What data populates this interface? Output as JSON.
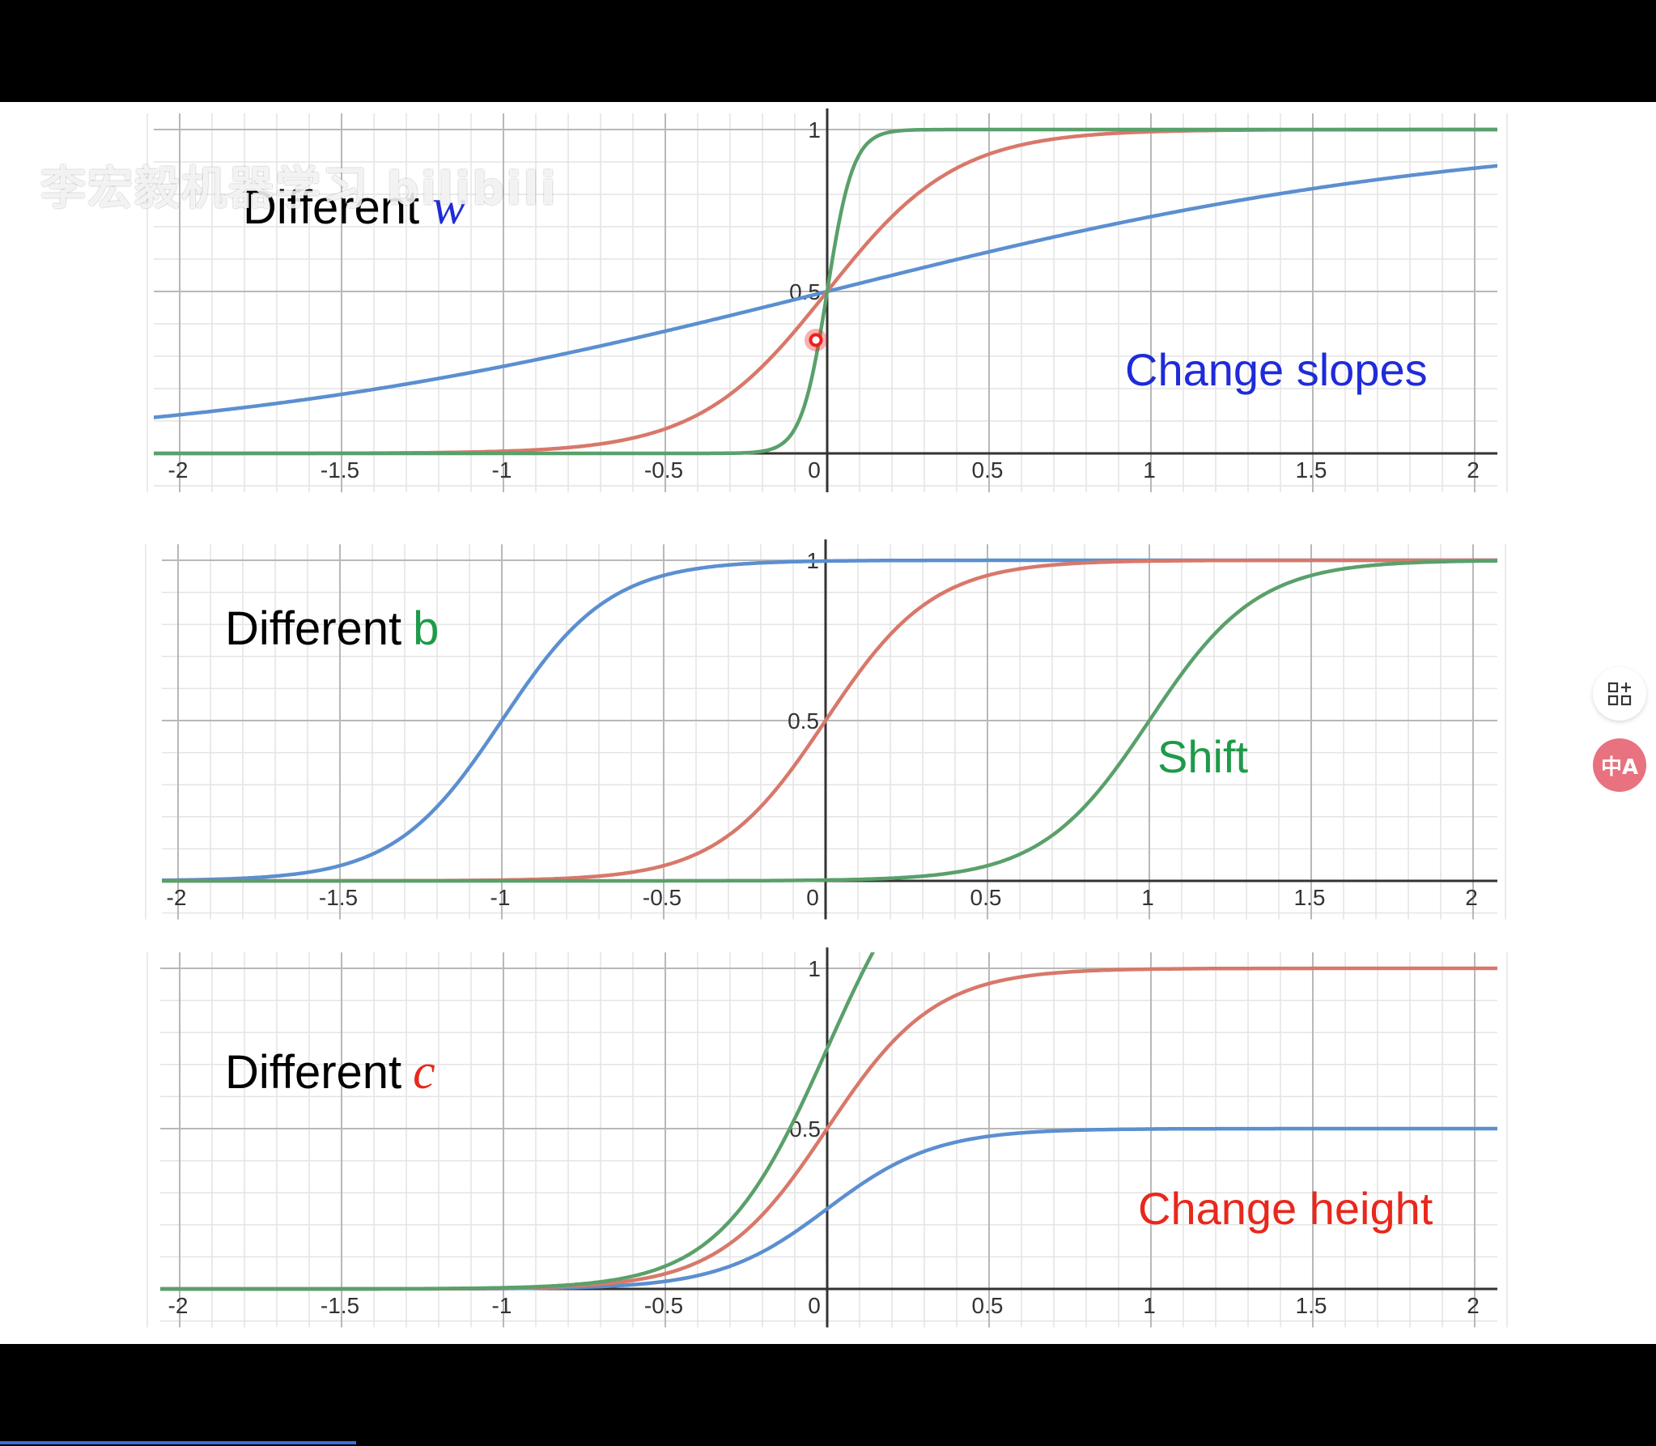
{
  "watermark": "李宏毅机器学习 bilibili",
  "side_buttons": {
    "grid_icon": "grid-plus-icon",
    "translate_icon": "translate-icon",
    "translate_label": "中A"
  },
  "colors": {
    "blue": "#5b8fd0",
    "red": "#d8786a",
    "green": "#5aa06a",
    "annotation_blue": "#1f2bd8",
    "annotation_green": "#1e9a49",
    "annotation_red": "#e8281c"
  },
  "chart_data": [
    {
      "type": "line",
      "title_prefix": "Different",
      "title_variable": "w",
      "annotation": "Change slopes",
      "x_ticks": [
        "-2",
        "-1.5",
        "-1",
        "-0.5",
        "0",
        "0.5",
        "1",
        "1.5",
        "2"
      ],
      "y_ticks": [
        "0.5",
        "1"
      ],
      "xlim": [
        -2.1,
        2.1
      ],
      "ylim": [
        -0.12,
        1.05
      ],
      "grid": true,
      "function": "c / (1 + exp(-(w*x + b)))",
      "series": [
        {
          "color": "blue",
          "w": 1,
          "b": 0,
          "c": 1
        },
        {
          "color": "red",
          "w": 5,
          "b": 0,
          "c": 1
        },
        {
          "color": "green",
          "w": 25,
          "b": 0,
          "c": 1
        }
      ]
    },
    {
      "type": "line",
      "title_prefix": "Different",
      "title_variable": "b",
      "annotation": "Shift",
      "x_ticks": [
        "-2",
        "-1.5",
        "-1",
        "-0.5",
        "0",
        "0.5",
        "1",
        "1.5",
        "2"
      ],
      "y_ticks": [
        "0.5",
        "1"
      ],
      "xlim": [
        -2.1,
        2.1
      ],
      "ylim": [
        -0.12,
        1.05
      ],
      "grid": true,
      "function": "c / (1 + exp(-(w*x + b)))",
      "series": [
        {
          "color": "blue",
          "w": 6,
          "b": 6,
          "c": 1
        },
        {
          "color": "red",
          "w": 6,
          "b": 0,
          "c": 1
        },
        {
          "color": "green",
          "w": 6,
          "b": -6,
          "c": 1
        }
      ]
    },
    {
      "type": "line",
      "title_prefix": "Different",
      "title_variable": "c",
      "annotation": "Change height",
      "x_ticks": [
        "-2",
        "-1.5",
        "-1",
        "-0.5",
        "0",
        "0.5",
        "1",
        "1.5",
        "2"
      ],
      "y_ticks": [
        "0.5",
        "1"
      ],
      "xlim": [
        -2.1,
        2.1
      ],
      "ylim": [
        -0.12,
        1.05
      ],
      "grid": true,
      "function": "c / (1 + exp(-(w*x + b)))",
      "series": [
        {
          "color": "blue",
          "w": 6,
          "b": 0,
          "c": 0.5
        },
        {
          "color": "red",
          "w": 6,
          "b": 0,
          "c": 1
        },
        {
          "color": "green",
          "w": 6,
          "b": 0,
          "c": 1.5
        }
      ]
    }
  ]
}
